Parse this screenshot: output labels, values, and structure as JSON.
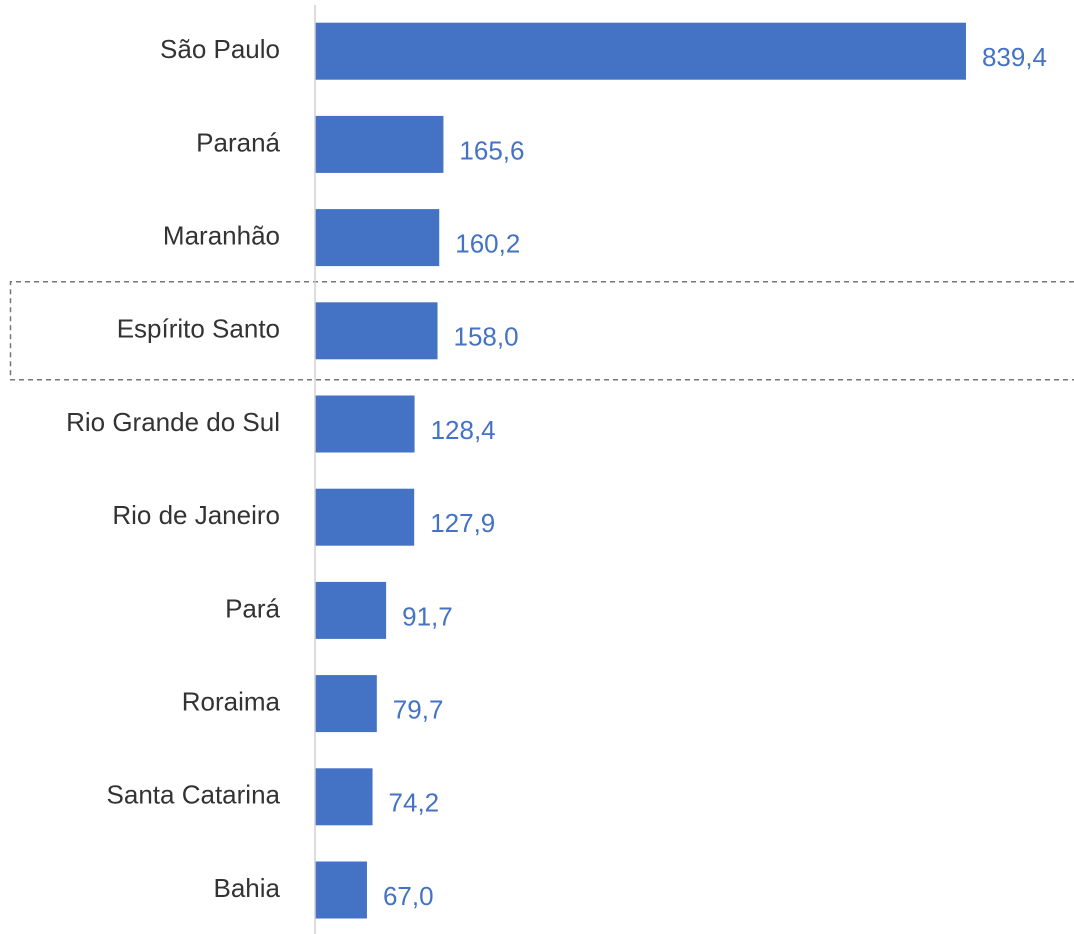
{
  "chart_data": {
    "type": "barh",
    "categories": [
      "São Paulo",
      "Paraná",
      "Maranhão",
      "Espírito Santo",
      "Rio Grande do Sul",
      "Rio de Janeiro",
      "Pará",
      "Roraima",
      "Santa Catarina",
      "Bahia"
    ],
    "values": [
      839.4,
      165.6,
      160.2,
      158.0,
      128.4,
      127.9,
      91.7,
      79.7,
      74.2,
      67.0
    ],
    "value_labels": [
      "839,4",
      "165,6",
      "160,2",
      "158,0",
      "128,4",
      "127,9",
      "91,7",
      "79,7",
      "74,2",
      "67,0"
    ],
    "color": "#4472c4",
    "xlim": [
      0,
      980
    ],
    "highlight": "Espírito Santo"
  }
}
